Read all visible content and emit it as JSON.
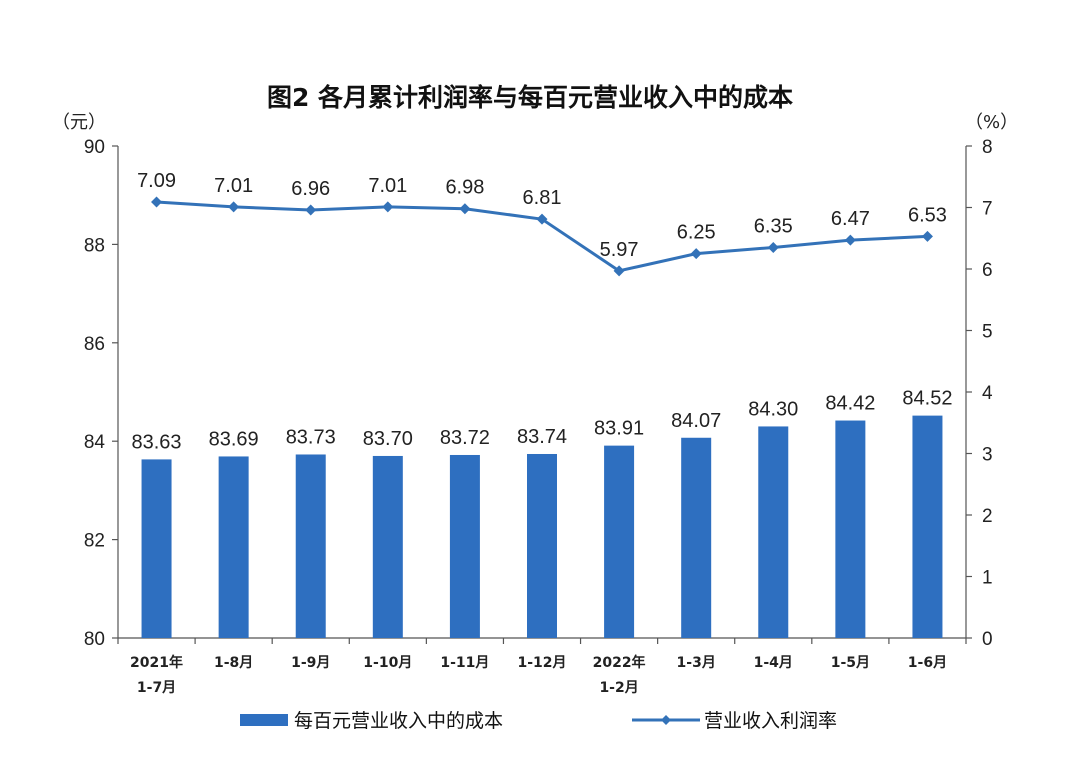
{
  "chart_data": {
    "type": "bar",
    "title": "图2  各月累计利润率与每百元营业收入中的成本",
    "left_axis": {
      "unit": "（元）",
      "range": [
        80,
        90
      ],
      "ticks": [
        "80",
        "82",
        "84",
        "86",
        "88",
        "90"
      ]
    },
    "right_axis": {
      "unit": "（%）",
      "range": [
        0,
        8
      ],
      "ticks": [
        "0",
        "1",
        "2",
        "3",
        "4",
        "5",
        "6",
        "7",
        "8"
      ]
    },
    "categories": [
      [
        "2021年",
        "1-7月"
      ],
      [
        "1-8月"
      ],
      [
        "1-9月"
      ],
      [
        "1-10月"
      ],
      [
        "1-11月"
      ],
      [
        "1-12月"
      ],
      [
        "2022年",
        "1-2月"
      ],
      [
        "1-3月"
      ],
      [
        "1-4月"
      ],
      [
        "1-5月"
      ],
      [
        "1-6月"
      ]
    ],
    "series": [
      {
        "name": "每百元营业收入中的成本",
        "type": "bar",
        "axis": "left",
        "color": "#2e6fc0",
        "values": [
          83.63,
          83.69,
          83.73,
          83.7,
          83.72,
          83.74,
          83.91,
          84.07,
          84.3,
          84.42,
          84.52
        ],
        "labels": [
          "83.63",
          "83.69",
          "83.73",
          "83.70",
          "83.72",
          "83.74",
          "83.91",
          "84.07",
          "84.30",
          "84.42",
          "84.52"
        ]
      },
      {
        "name": "营业收入利润率",
        "type": "line",
        "axis": "right",
        "color": "#3372b8",
        "values": [
          7.09,
          7.01,
          6.96,
          7.01,
          6.98,
          6.81,
          5.97,
          6.25,
          6.35,
          6.47,
          6.53
        ],
        "labels": [
          "7.09",
          "7.01",
          "6.96",
          "7.01",
          "6.98",
          "6.81",
          "5.97",
          "6.25",
          "6.35",
          "6.47",
          "6.53"
        ]
      }
    ],
    "grid": false,
    "legend_position": "bottom"
  }
}
